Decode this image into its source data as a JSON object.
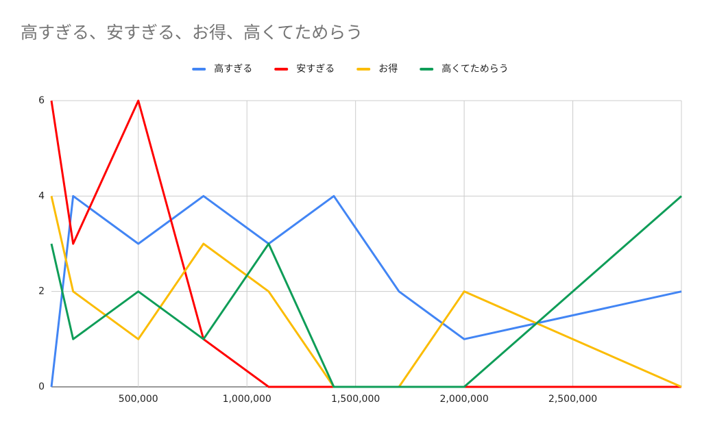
{
  "chart_data": {
    "type": "line",
    "title": "高すぎる、安すぎる、お得、高くてためらう",
    "x": [
      100000,
      200000,
      500000,
      800000,
      1100000,
      1400000,
      1700000,
      2000000,
      3000000
    ],
    "series": [
      {
        "name": "高すぎる",
        "color": "#4285f4",
        "values": [
          0,
          4,
          3,
          4,
          3,
          4,
          2,
          1,
          2
        ]
      },
      {
        "name": "安すぎる",
        "color": "#ff0000",
        "values": [
          6,
          3,
          6,
          1,
          0,
          0,
          0,
          0,
          0
        ]
      },
      {
        "name": "お得",
        "color": "#fbbc04",
        "values": [
          4,
          2,
          1,
          3,
          2,
          0,
          0,
          2,
          0
        ]
      },
      {
        "name": "高くてためらう",
        "color": "#0f9d58",
        "values": [
          3,
          1,
          2,
          1,
          3,
          0,
          0,
          0,
          4
        ]
      }
    ],
    "xlim": [
      100000,
      3000000
    ],
    "xticks": [
      {
        "value": 500000,
        "label": "500,000"
      },
      {
        "value": 1000000,
        "label": "1,000,000"
      },
      {
        "value": 1500000,
        "label": "1,500,000"
      },
      {
        "value": 2000000,
        "label": "2,000,000"
      },
      {
        "value": 2500000,
        "label": "2,500,000"
      }
    ],
    "ylim": [
      0,
      6
    ],
    "yticks": [
      0,
      2,
      4,
      6
    ],
    "grid": true,
    "legend": "top"
  }
}
